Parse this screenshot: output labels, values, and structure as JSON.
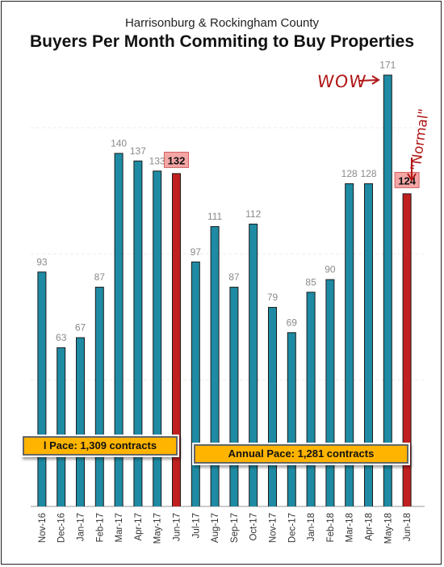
{
  "subtitle": "Harrisonburg & Rockingham County",
  "title": "Buyers Per Month Commiting to Buy Properties",
  "annotations": {
    "wow": "WOW",
    "normal": "\"Normal\""
  },
  "pace_labels": [
    "l Pace: 1,309 contracts",
    "Annual Pace: 1,281 contracts"
  ],
  "colors": {
    "bar_teal": "#1f8aa3",
    "bar_red": "#c02020",
    "highlight_label_bg": "#f4a5a5",
    "pace_box": "#ffb400",
    "annotation_red": "#b01818"
  },
  "chart_data": {
    "type": "bar",
    "categories": [
      "Nov-16",
      "Dec-16",
      "Jan-17",
      "Feb-17",
      "Mar-17",
      "Apr-17",
      "May-17",
      "Jun-17",
      "Jul-17",
      "Aug-17",
      "Sep-17",
      "Oct-17",
      "Nov-17",
      "Dec-17",
      "Jan-18",
      "Feb-18",
      "Mar-18",
      "Apr-18",
      "May-18",
      "Jun-18"
    ],
    "values": [
      93,
      63,
      67,
      87,
      140,
      137,
      133,
      132,
      97,
      111,
      87,
      112,
      79,
      69,
      85,
      90,
      128,
      128,
      171,
      124
    ],
    "highlighted": [
      "Jun-17",
      "Jun-18"
    ],
    "title": "Buyers Per Month Commiting to Buy Properties",
    "xlabel": "",
    "ylabel": "",
    "ylim": [
      0,
      175
    ],
    "grid": true,
    "legend": "none"
  }
}
